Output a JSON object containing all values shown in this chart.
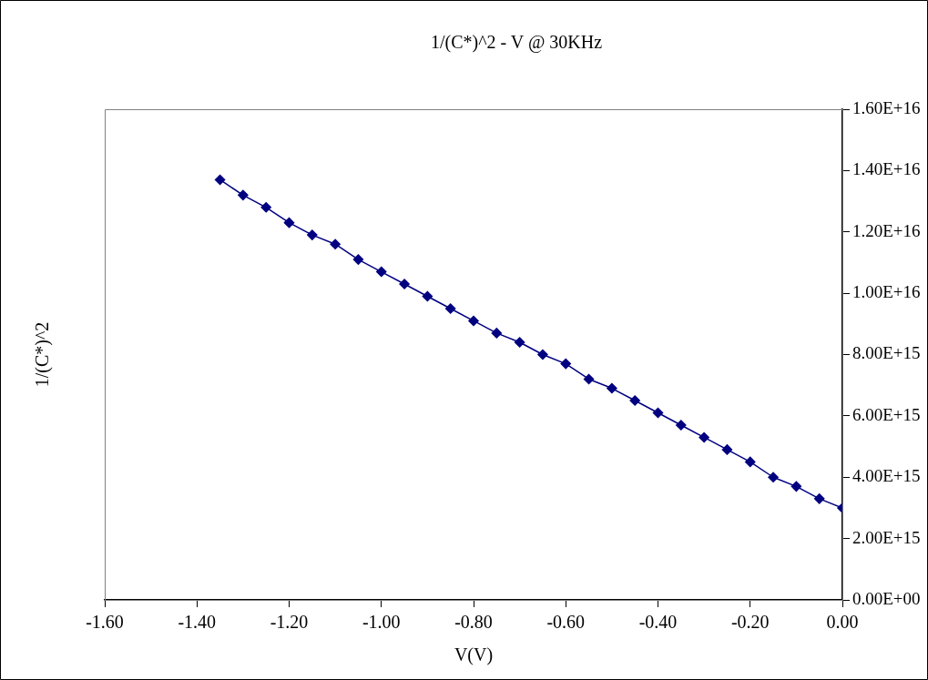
{
  "chart_data": {
    "type": "line",
    "title": "1/(C*)^2 - V @ 30KHz",
    "xlabel": "V(V)",
    "ylabel": "1/(C*)^2",
    "x": [
      -1.35,
      -1.3,
      -1.25,
      -1.2,
      -1.15,
      -1.1,
      -1.05,
      -1.0,
      -0.95,
      -0.9,
      -0.85,
      -0.8,
      -0.75,
      -0.7,
      -0.65,
      -0.6,
      -0.55,
      -0.5,
      -0.45,
      -0.4,
      -0.35,
      -0.3,
      -0.25,
      -0.2,
      -0.15,
      -0.1,
      -0.05,
      0.0
    ],
    "series": [
      {
        "color": "#000080",
        "values": [
          1.37e+16,
          1.32e+16,
          1.28e+16,
          1.23e+16,
          1.19e+16,
          1.16e+16,
          1.11e+16,
          1.07e+16,
          1.03e+16,
          9900000000000000.0,
          9500000000000000.0,
          9100000000000000.0,
          8700000000000000.0,
          8400000000000000.0,
          8000000000000000.0,
          7700000000000000.0,
          7200000000000000.0,
          6900000000000000.0,
          6500000000000000.0,
          6100000000000000.0,
          5700000000000000.0,
          5300000000000000.0,
          4900000000000000.0,
          4500000000000000.0,
          4000000000000000.0,
          3700000000000000.0,
          3300000000000000.0,
          3000000000000000.0
        ]
      }
    ],
    "xlim": [
      -1.6,
      0
    ],
    "xticks": [
      {
        "value": -1.6,
        "label": "-1.60"
      },
      {
        "value": -1.4,
        "label": "-1.40"
      },
      {
        "value": -1.2,
        "label": "-1.20"
      },
      {
        "value": -1.0,
        "label": "-1.00"
      },
      {
        "value": -0.8,
        "label": "-0.80"
      },
      {
        "value": -0.6,
        "label": "-0.60"
      },
      {
        "value": -0.4,
        "label": "-0.40"
      },
      {
        "value": -0.2,
        "label": "-0.20"
      },
      {
        "value": 0,
        "label": "0.00"
      }
    ],
    "ylim": [
      0,
      1.6e+16
    ],
    "yticks": [
      {
        "value": 0,
        "label": "0.00E+00"
      },
      {
        "value": 2000000000000000.0,
        "label": "2.00E+15"
      },
      {
        "value": 4000000000000000.0,
        "label": "4.00E+15"
      },
      {
        "value": 6000000000000000.0,
        "label": "6.00E+15"
      },
      {
        "value": 8000000000000000.0,
        "label": "8.00E+15"
      },
      {
        "value": 1e+16,
        "label": "1.00E+16"
      },
      {
        "value": 1.2e+16,
        "label": "1.20E+16"
      },
      {
        "value": 1.4e+16,
        "label": "1.40E+16"
      },
      {
        "value": 1.6e+16,
        "label": "1.60E+16"
      }
    ],
    "grid": false,
    "legend": false,
    "marker": "diamond",
    "line_style": "solid"
  }
}
